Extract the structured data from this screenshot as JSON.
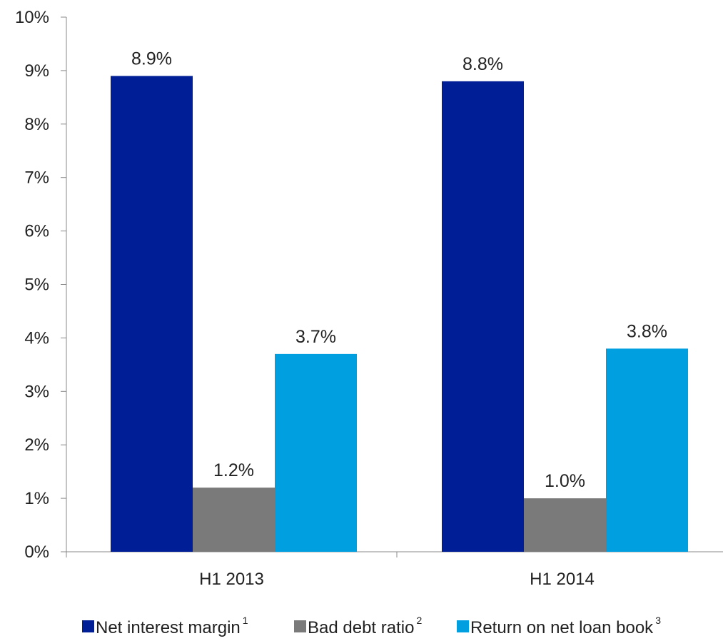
{
  "chart_data": {
    "type": "bar",
    "categories": [
      "H1 2013",
      "H1 2014"
    ],
    "series": [
      {
        "name": "Net interest margin",
        "footnote": "1",
        "color": "#001e96",
        "values": [
          8.9,
          8.8
        ],
        "labels": [
          "8.9%",
          "8.8%"
        ]
      },
      {
        "name": "Bad debt ratio",
        "footnote": "2",
        "color": "#7a7a7a",
        "values": [
          1.2,
          1.0
        ],
        "labels": [
          "1.2%",
          "1.0%"
        ]
      },
      {
        "name": "Return on net loan book",
        "footnote": "3",
        "color": "#009fe0",
        "values": [
          3.7,
          3.8
        ],
        "labels": [
          "3.7%",
          "3.8%"
        ]
      }
    ],
    "ylim": [
      0,
      10
    ],
    "yticks": [
      0,
      1,
      2,
      3,
      4,
      5,
      6,
      7,
      8,
      9,
      10
    ],
    "ytick_labels": [
      "0%",
      "1%",
      "2%",
      "3%",
      "4%",
      "5%",
      "6%",
      "7%",
      "8%",
      "9%",
      "10%"
    ],
    "grid": false,
    "legend_position": "bottom"
  }
}
